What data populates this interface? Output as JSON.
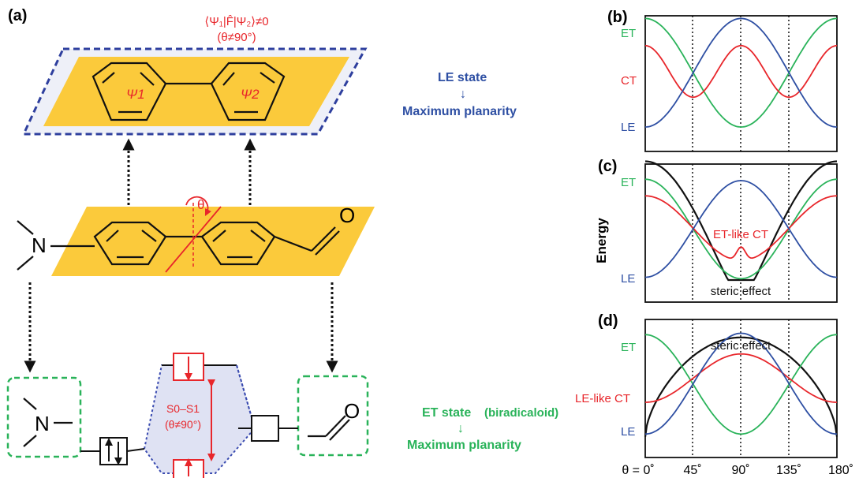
{
  "panel_labels": {
    "a": "(a)",
    "b": "(b)",
    "c": "(c)",
    "d": "(d)"
  },
  "matrix_element": "⟨Ψ₁|F̂|Ψ₂⟩≠0",
  "matrix_condition": "(θ≠90°)",
  "psi1": "Ψ1",
  "psi2": "Ψ2",
  "theta_symbol": "θ",
  "oxygen": "O",
  "nitrogen": "N",
  "le_state": "LE state",
  "le_arrow": "↓",
  "le_planarity": "Maximum planarity",
  "et_state": "ET state",
  "et_biradicaloid": "(biradicaloid)",
  "et_arrow": "↓",
  "et_planarity": "Maximum planarity",
  "s0s1": "S0–S1",
  "s0s1_condition": "(θ≠90°)",
  "energy_label": "Energy",
  "colors": {
    "le": "#2e4fa3",
    "ct": "#e8262b",
    "et": "#2ab35a",
    "black": "#111111",
    "plane": "#fbca3b",
    "le_box": "#2e3f9e",
    "et_box": "#2ab35a",
    "mo_red": "#e8262b"
  },
  "chart_data": [
    {
      "panel": "(b)",
      "type": "line",
      "x_ticks": [
        "θ = 0˚",
        "45˚",
        "90˚",
        "135˚",
        "180˚"
      ],
      "y_labels": [
        "ET",
        "CT",
        "LE"
      ],
      "series": [
        {
          "name": "ET",
          "shape": "cos2 maximum at 0˚ and 180˚, minimum at 90˚"
        },
        {
          "name": "CT",
          "shape": "maxima at 0˚, 90˚, 180˚; minima at 45˚, 135˚"
        },
        {
          "name": "LE",
          "shape": "maximum at 90˚, minima at 0˚ and 180˚"
        }
      ]
    },
    {
      "panel": "(c)",
      "type": "line",
      "y_labels": [
        "ET",
        "LE"
      ],
      "annotations": [
        "ET-like CT",
        "steric effect"
      ],
      "ylabel": "Energy"
    },
    {
      "panel": "(d)",
      "type": "line",
      "y_labels": [
        "ET",
        "LE-like CT",
        "LE"
      ],
      "annotations": [
        "steric effect"
      ]
    }
  ]
}
